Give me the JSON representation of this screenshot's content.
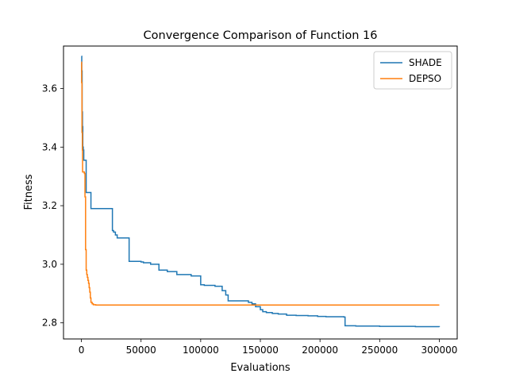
{
  "chart_data": {
    "type": "line",
    "title": "Convergence Comparison of Function 16",
    "xlabel": "Evaluations",
    "ylabel": "Fitness",
    "xlim": [
      -15000,
      315000
    ],
    "ylim": [
      2.745,
      3.745
    ],
    "xticks": [
      0,
      50000,
      100000,
      150000,
      200000,
      250000,
      300000
    ],
    "yticks": [
      2.8,
      3.0,
      3.2,
      3.4,
      3.6
    ],
    "xtick_labels": [
      "0",
      "50000",
      "100000",
      "150000",
      "200000",
      "250000",
      "300000"
    ],
    "ytick_labels": [
      "2.8",
      "3.0",
      "3.2",
      "3.4",
      "3.6"
    ],
    "grid": false,
    "legend_position": "top-right",
    "step": true,
    "series": [
      {
        "name": "SHADE",
        "color": "#1f77b4",
        "x": [
          0,
          300,
          600,
          900,
          1200,
          1600,
          2000,
          2500,
          3000,
          4000,
          5500,
          8000,
          10000,
          26000,
          27000,
          28500,
          30000,
          34000,
          40000,
          50000,
          52000,
          58000,
          65000,
          72000,
          80000,
          92000,
          100000,
          103000,
          112000,
          118000,
          121000,
          123000,
          140000,
          143000,
          146000,
          150000,
          152000,
          155000,
          160000,
          165000,
          172000,
          180000,
          190000,
          198000,
          205000,
          220000,
          221000,
          230000,
          250000,
          280000,
          300000
        ],
        "y": [
          3.71,
          3.66,
          3.52,
          3.47,
          3.4,
          3.39,
          3.355,
          3.355,
          3.355,
          3.245,
          3.245,
          3.19,
          3.19,
          3.115,
          3.11,
          3.1,
          3.09,
          3.09,
          3.01,
          3.008,
          3.005,
          3.0,
          2.98,
          2.975,
          2.965,
          2.96,
          2.93,
          2.928,
          2.925,
          2.91,
          2.895,
          2.875,
          2.87,
          2.865,
          2.855,
          2.845,
          2.838,
          2.835,
          2.832,
          2.83,
          2.826,
          2.825,
          2.824,
          2.822,
          2.821,
          2.82,
          2.79,
          2.789,
          2.788,
          2.787,
          2.786
        ]
      },
      {
        "name": "DEPSO",
        "color": "#ff7f0e",
        "x": [
          0,
          200,
          500,
          800,
          1000,
          1500,
          2000,
          2500,
          3000,
          3500,
          4000,
          4500,
          5000,
          5500,
          6000,
          6500,
          7000,
          7500,
          8000,
          9000,
          10000,
          12000,
          15000,
          300000
        ],
        "y": [
          3.69,
          3.62,
          3.45,
          3.39,
          3.315,
          3.315,
          3.315,
          3.31,
          3.23,
          3.05,
          2.98,
          2.965,
          2.955,
          2.945,
          2.935,
          2.92,
          2.905,
          2.885,
          2.87,
          2.865,
          2.862,
          2.861,
          2.861,
          2.861
        ]
      }
    ]
  }
}
